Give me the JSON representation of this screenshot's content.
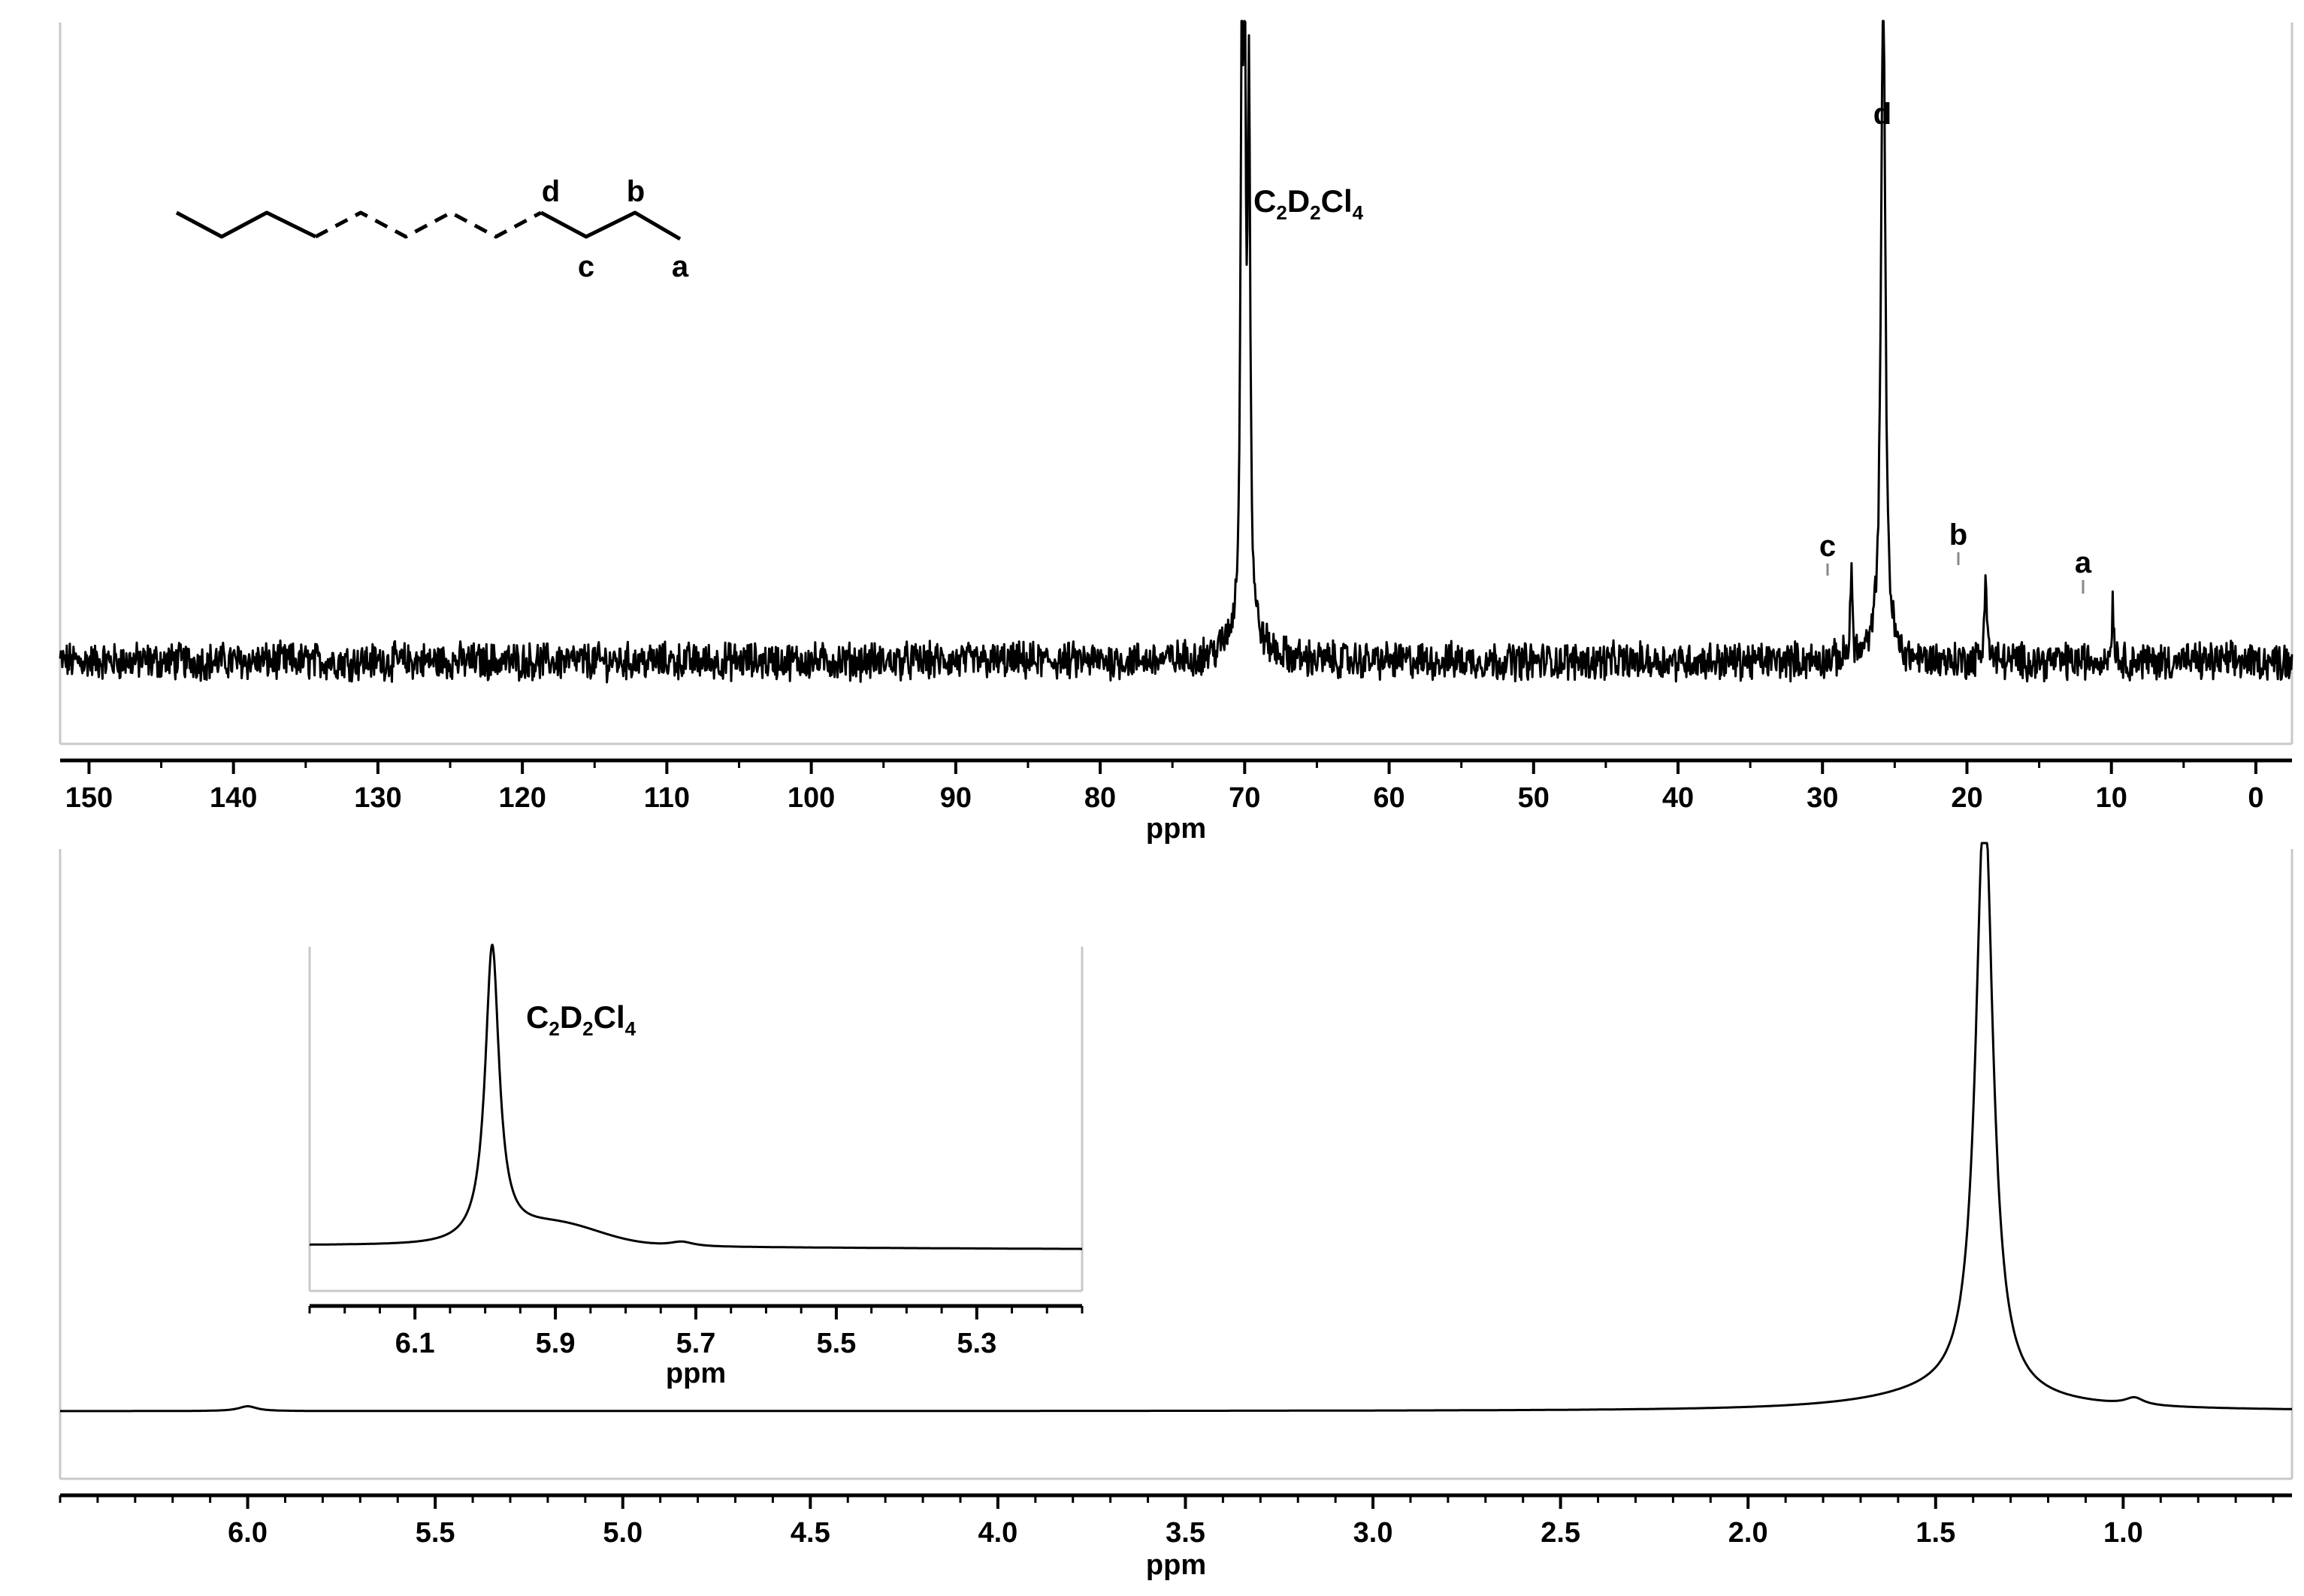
{
  "chart_data": [
    {
      "id": "c13",
      "type": "line",
      "xlabel": "ppm",
      "xlim": [
        152,
        -2.5
      ],
      "x_reversed": true,
      "grid": false,
      "x_ticks": [
        150,
        140,
        130,
        120,
        110,
        100,
        90,
        80,
        70,
        60,
        50,
        40,
        30,
        20,
        10,
        0
      ],
      "x_tick_labels": [
        "150",
        "140",
        "130",
        "120",
        "110",
        "100",
        "90",
        "80",
        "70",
        "60",
        "50",
        "40",
        "30",
        "20",
        "10",
        "0"
      ],
      "peaks": [
        {
          "ppm": 70.2,
          "height": 0.95,
          "label": "C2D2Cl4"
        },
        {
          "ppm": 70.0,
          "height": 0.93
        },
        {
          "ppm": 69.7,
          "height": 0.92
        },
        {
          "ppm": 28.0,
          "height": 0.14,
          "label": "c"
        },
        {
          "ppm": 25.8,
          "height": 1.2,
          "label": "d"
        },
        {
          "ppm": 18.7,
          "height": 0.16,
          "label": "b"
        },
        {
          "ppm": 9.9,
          "height": 0.1,
          "label": "a"
        }
      ],
      "annotations": [
        {
          "text": "C",
          "sub1": "2",
          "text2": "D",
          "sub2": "2",
          "text3": "Cl",
          "sub3": "4"
        },
        {
          "text": "c"
        },
        {
          "text": "d"
        },
        {
          "text": "b"
        },
        {
          "text": "a"
        }
      ],
      "structure_labels": [
        "d",
        "b",
        "c",
        "a"
      ]
    },
    {
      "id": "h1",
      "type": "line",
      "xlabel": "ppm",
      "xlim": [
        6.5,
        0.55
      ],
      "x_reversed": true,
      "grid": false,
      "x_ticks": [
        6.0,
        5.5,
        5.0,
        4.5,
        4.0,
        3.5,
        3.0,
        2.5,
        2.0,
        1.5,
        1.0
      ],
      "x_tick_labels": [
        "6.0",
        "5.5",
        "5.0",
        "4.5",
        "4.0",
        "3.5",
        "3.0",
        "2.5",
        "2.0",
        "1.5",
        "1.0"
      ],
      "peaks": [
        {
          "ppm": 1.37,
          "height": 1.0
        },
        {
          "ppm": 6.0,
          "height": 0.01
        },
        {
          "ppm": 0.97,
          "height": 0.015
        }
      ],
      "inset": {
        "xlabel": "ppm",
        "xlim": [
          6.25,
          5.15
        ],
        "x_ticks": [
          6.1,
          5.9,
          5.7,
          5.5,
          5.3
        ],
        "x_tick_labels": [
          "6.1",
          "5.9",
          "5.7",
          "5.5",
          "5.3"
        ],
        "peaks": [
          {
            "ppm": 5.99,
            "height": 1.0,
            "label": "C2D2Cl4"
          }
        ],
        "annotation": {
          "text": "C",
          "sub1": "2",
          "text2": "D",
          "sub2": "2",
          "text3": "Cl",
          "sub3": "4"
        }
      }
    }
  ]
}
